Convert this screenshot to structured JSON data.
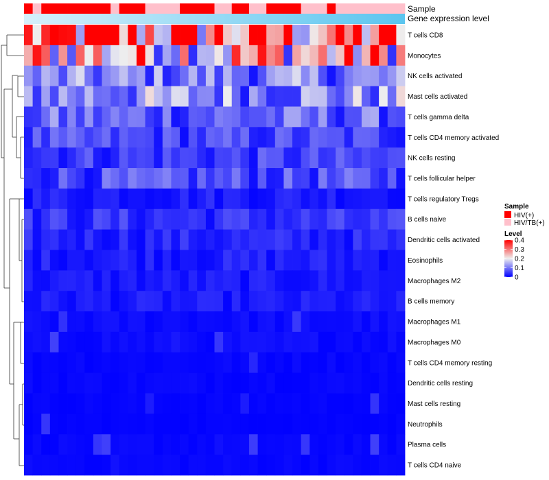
{
  "chart_data": {
    "type": "heatmap",
    "title": "",
    "annotation_labels": [
      "Sample",
      "Gene expression level"
    ],
    "rows": [
      "T cells CD8",
      "Monocytes",
      "NK cells activated",
      "Mast cells activated",
      "T cells gamma delta",
      "T cells CD4 memory activated",
      "NK cells resting",
      "T cells follicular helper",
      "T cells regulatory  Tregs",
      "B cells naive",
      "Dendritic cells activated",
      "Eosinophils",
      "Macrophages M2",
      "B cells memory",
      "Macrophages M1",
      "Macrophages M0",
      "T cells CD4 memory resting",
      "Dendritic cells resting",
      "Mast cells resting",
      "Neutrophils",
      "Plasma cells",
      "T cells CD4 naive"
    ],
    "n_columns": 44,
    "sample_groups": [
      "HIV(+)",
      "HIV/TB(+)",
      "HIV(+)",
      "HIV(+)",
      "HIV(+)",
      "HIV(+)",
      "HIV(+)",
      "HIV(+)",
      "HIV(+)",
      "HIV(+)",
      "HIV/TB(+)",
      "HIV(+)",
      "HIV(+)",
      "HIV(+)",
      "HIV/TB(+)",
      "HIV/TB(+)",
      "HIV/TB(+)",
      "HIV/TB(+)",
      "HIV(+)",
      "HIV(+)",
      "HIV(+)",
      "HIV(+)",
      "HIV/TB(+)",
      "HIV/TB(+)",
      "HIV(+)",
      "HIV(+)",
      "HIV/TB(+)",
      "HIV/TB(+)",
      "HIV(+)",
      "HIV(+)",
      "HIV(+)",
      "HIV(+)",
      "HIV/TB(+)",
      "HIV/TB(+)",
      "HIV/TB(+)",
      "HIV(+)",
      "HIV/TB(+)",
      "HIV/TB(+)",
      "HIV/TB(+)",
      "HIV/TB(+)",
      "HIV/TB(+)",
      "HIV/TB(+)",
      "HIV/TB(+)",
      "HIV/TB(+)"
    ],
    "row_means": [
      0.3,
      0.24,
      0.1,
      0.12,
      0.08,
      0.055,
      0.05,
      0.06,
      0.025,
      0.04,
      0.03,
      0.025,
      0.02,
      0.02,
      0.01,
      0.01,
      0.006,
      0.006,
      0.004,
      0.003,
      0.006,
      0.006
    ],
    "value_range": [
      0,
      0.4
    ],
    "legend": {
      "sample_title": "Sample",
      "sample_items": [
        {
          "label": "HIV(+)",
          "color": "#ff0000"
        },
        {
          "label": "HIV/TB(+)",
          "color": "#ffc0cb"
        }
      ],
      "level_title": "Level",
      "level_ticks": [
        "0.4",
        "0.3",
        "0.2",
        "0.1",
        "0"
      ],
      "level_values": [
        0.4,
        0.3,
        0.2,
        0.1,
        0
      ]
    },
    "colors": {
      "low": "#0000ff",
      "mid": "#eeeeee",
      "high": "#ff0000",
      "hiv": "#ff0000",
      "hivtb": "#ffc0cb",
      "expr_start": "#d6f0fb",
      "expr_end": "#5bc5ef"
    },
    "position": "legend right"
  }
}
